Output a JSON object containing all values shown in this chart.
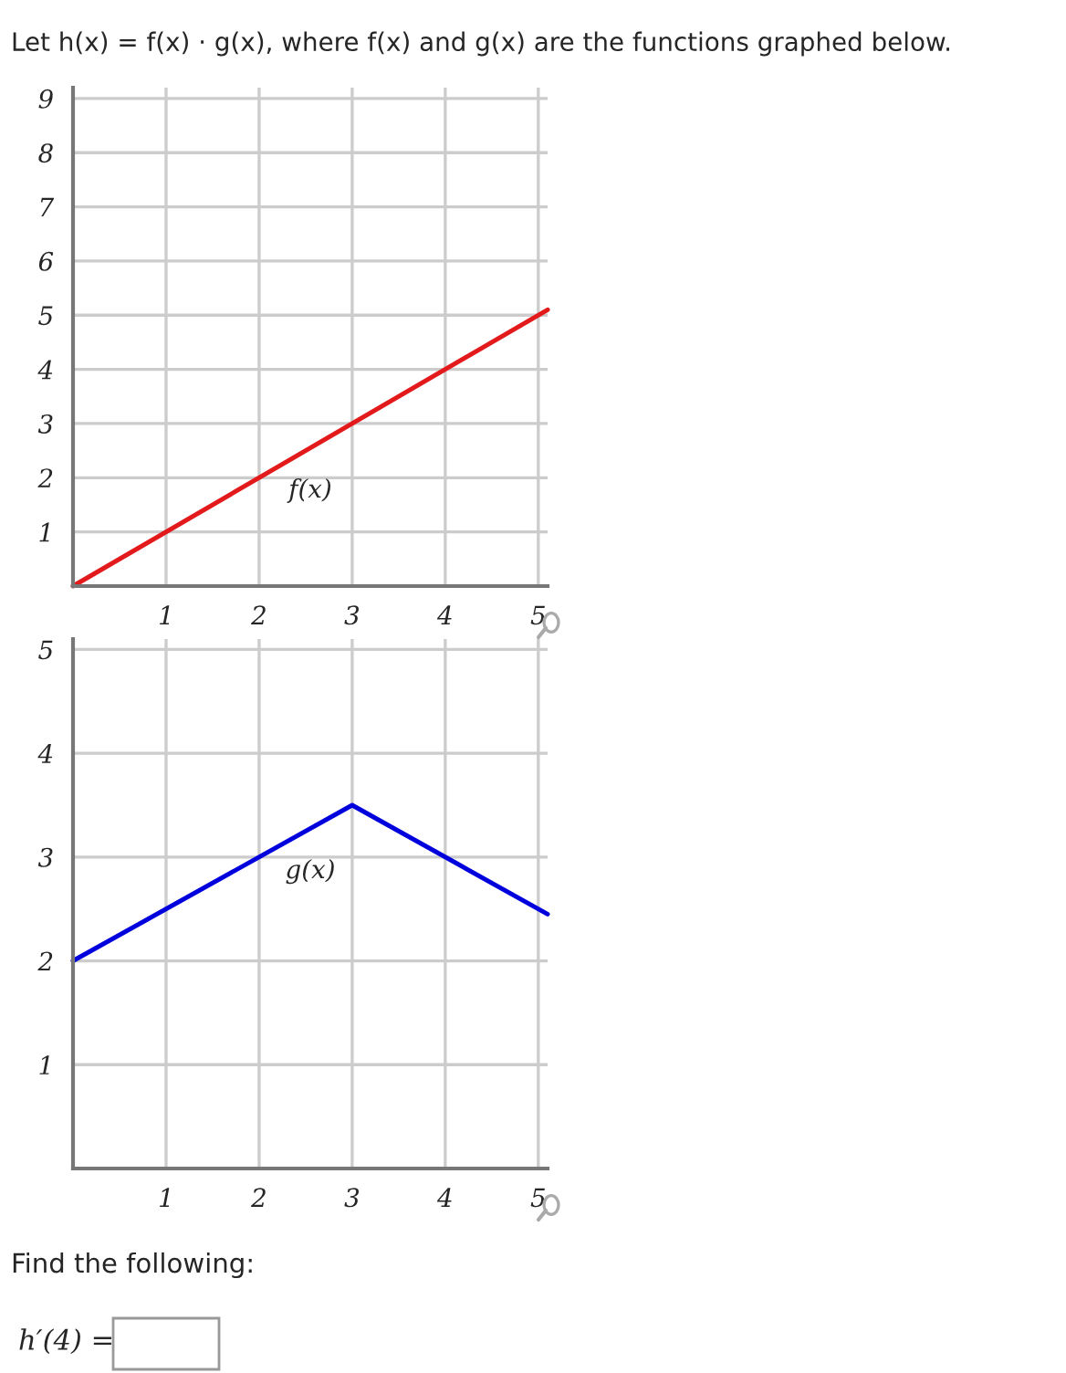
{
  "chart_data": [
    {
      "type": "line",
      "title": "Let h(x) = f(x) · g(x), where f(x) and g(x) are the functions graphed below.",
      "series": [
        {
          "name": "f(x)",
          "color": "#e31a1c",
          "x": [
            0,
            5.1
          ],
          "values": [
            0,
            5.1
          ]
        }
      ],
      "xlim": [
        0,
        5.1
      ],
      "xticks": [
        1,
        2,
        3,
        4,
        5
      ],
      "ylim": [
        0,
        9.2
      ],
      "yticks": [
        1,
        2,
        3,
        4,
        5,
        6,
        7,
        8,
        9
      ],
      "grid": true,
      "legend": false,
      "marker": "none",
      "line_style": "solid"
    },
    {
      "type": "line",
      "annotations": [
        "Find the following:",
        "h′(4) ="
      ],
      "series": [
        {
          "name": "g(x)",
          "color": "#0000dd",
          "x": [
            0,
            3,
            5.1
          ],
          "values": [
            2,
            3.5,
            2.45
          ]
        }
      ],
      "xlim": [
        0,
        5.1
      ],
      "xticks": [
        1,
        2,
        3,
        4,
        5
      ],
      "ylim": [
        0,
        5.1
      ],
      "yticks": [
        1,
        2,
        3,
        4,
        5
      ],
      "grid": true,
      "legend": false,
      "marker": "none",
      "line_style": "solid"
    }
  ]
}
